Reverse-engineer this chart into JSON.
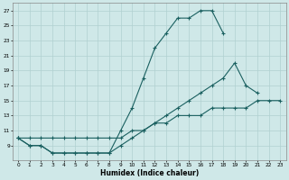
{
  "xlabel": "Humidex (Indice chaleur)",
  "xlim": [
    -0.5,
    23.5
  ],
  "ylim": [
    7,
    28
  ],
  "xticks": [
    0,
    1,
    2,
    3,
    4,
    5,
    6,
    7,
    8,
    9,
    10,
    11,
    12,
    13,
    14,
    15,
    16,
    17,
    18,
    19,
    20,
    21,
    22,
    23
  ],
  "yticks": [
    9,
    11,
    13,
    15,
    17,
    19,
    21,
    23,
    25,
    27
  ],
  "background_color": "#cfe8e8",
  "grid_color": "#b0d0d0",
  "line_color": "#1a6060",
  "curve1_x": [
    0,
    1,
    2,
    3,
    4,
    5,
    6,
    7,
    8,
    9,
    10,
    11,
    12,
    13,
    14,
    15,
    16,
    17,
    18
  ],
  "curve1_y": [
    10,
    9,
    9,
    8,
    8,
    8,
    8,
    8,
    8,
    11,
    14,
    18,
    22,
    24,
    26,
    26,
    27,
    27,
    24
  ],
  "curve2_x": [
    0,
    1,
    2,
    3,
    4,
    5,
    6,
    7,
    8,
    9,
    10,
    11,
    12,
    13,
    14,
    15,
    16,
    17,
    18,
    19,
    20,
    21
  ],
  "curve2_y": [
    10,
    9,
    9,
    8,
    8,
    8,
    8,
    8,
    8,
    9,
    10,
    11,
    12,
    13,
    14,
    15,
    16,
    17,
    18,
    20,
    17,
    16
  ],
  "curve3_x": [
    0,
    1,
    2,
    3,
    4,
    5,
    6,
    7,
    8,
    9,
    10,
    11,
    12,
    13,
    14,
    15,
    16,
    17,
    18,
    19,
    20,
    21,
    22,
    23
  ],
  "curve3_y": [
    10,
    10,
    10,
    10,
    10,
    10,
    10,
    10,
    10,
    10,
    11,
    11,
    12,
    12,
    13,
    13,
    13,
    14,
    14,
    14,
    14,
    15,
    15,
    15
  ]
}
